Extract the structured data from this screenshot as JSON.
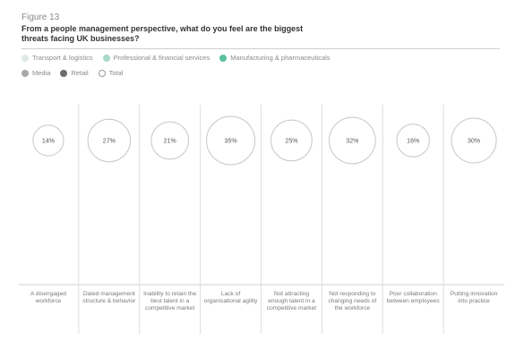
{
  "figure_label": "Figure 13",
  "title": "From a people management perspective, what do you feel are the biggest threats facing UK businesses?",
  "chart_data": {
    "type": "bubble",
    "categories": [
      "A disengaged workforce",
      "Dated management structure & behavior",
      "Inability to retain the best talent in a competitive market",
      "Lack of organisational agility",
      "Not attracting enough talent in a competitive market",
      "Not responding to changing needs of the workforce",
      "Poor collaboration between employees",
      "Putting innovation into practice"
    ],
    "series": [
      {
        "name": "Total",
        "values": [
          14,
          27,
          21,
          35,
          25,
          32,
          16,
          30
        ]
      }
    ],
    "value_labels": [
      "14%",
      "27%",
      "21%",
      "35%",
      "25%",
      "32%",
      "16%",
      "30%"
    ],
    "legend": [
      {
        "name": "Transport & logistics",
        "color": "#dfeae4",
        "style": "filled"
      },
      {
        "name": "Professional & financial services",
        "color": "#a9d8c6",
        "style": "filled"
      },
      {
        "name": "Manufacturing & pharmaceuticals",
        "color": "#5cc0a2",
        "style": "filled"
      },
      {
        "name": "Media",
        "color": "#a8a8a8",
        "style": "filled"
      },
      {
        "name": "Retail",
        "color": "#6c6c6c",
        "style": "filled"
      },
      {
        "name": "Total",
        "color": "#9a9a9a",
        "style": "outline"
      }
    ],
    "legend_position": "top-left"
  }
}
